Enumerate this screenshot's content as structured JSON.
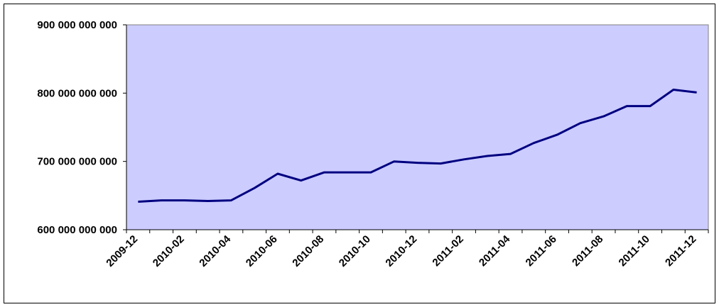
{
  "chart_data": {
    "type": "line",
    "categories": [
      "2009-12",
      null,
      "2010-02",
      null,
      "2010-04",
      null,
      "2010-06",
      null,
      "2010-08",
      null,
      "2010-10",
      null,
      "2010-12",
      null,
      "2011-02",
      null,
      "2011-04",
      null,
      "2011-06",
      null,
      "2011-08",
      null,
      "2011-10",
      null,
      "2011-12"
    ],
    "values": [
      641000000000,
      643000000000,
      643000000000,
      642000000000,
      643000000000,
      661000000000,
      682000000000,
      672000000000,
      684000000000,
      684000000000,
      684000000000,
      700000000000,
      698000000000,
      697000000000,
      703000000000,
      708000000000,
      711000000000,
      727000000000,
      739000000000,
      756000000000,
      766000000000,
      781000000000,
      781000000000,
      805000000000,
      801000000000
    ],
    "color": "#000080",
    "ylim": [
      600000000000,
      900000000000
    ],
    "yticks": [
      {
        "value": 600000000000,
        "label": "600 000 000 000"
      },
      {
        "value": 700000000000,
        "label": "700 000 000 000"
      },
      {
        "value": 800000000000,
        "label": "800 000 000 000"
      },
      {
        "value": 900000000000,
        "label": "900 000 000 000"
      }
    ],
    "grid": false,
    "plot_background": "#ccccff"
  }
}
